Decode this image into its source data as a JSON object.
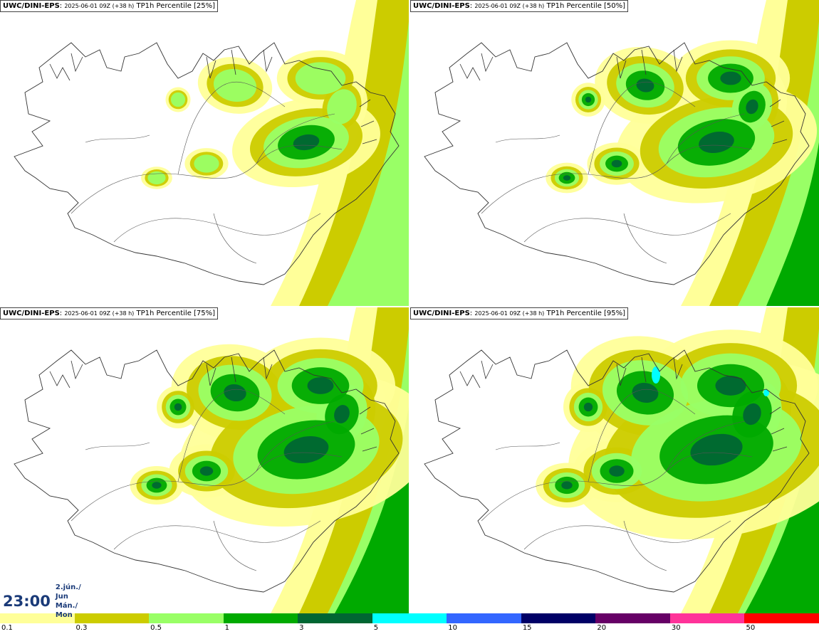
{
  "panels": [
    {
      "model": "UWC/DINI-EPS",
      "run": "2025-06-01 09Z (+38 h)",
      "field": "TP1h Percentile [25%]",
      "level": 0.25
    },
    {
      "model": "UWC/DINI-EPS",
      "run": "2025-06-01 09Z (+38 h)",
      "field": "TP1h Percentile [50%]",
      "level": 0.5
    },
    {
      "model": "UWC/DINI-EPS",
      "run": "2025-06-01 09Z (+38 h)",
      "field": "TP1h Percentile [75%]",
      "level": 0.75
    },
    {
      "model": "UWC/DINI-EPS",
      "run": "2025-06-01 09Z (+38 h)",
      "field": "TP1h Percentile [95%]",
      "level": 0.95
    }
  ],
  "valid_time": {
    "time": "23:00",
    "date_line1": "2.jún./ Jun",
    "date_line2": "Mán./ Mon"
  },
  "legend": {
    "colors": [
      "#ffff99",
      "#cccc00",
      "#99ff66",
      "#00aa00",
      "#006633",
      "#00ffff",
      "#3366ff",
      "#000066",
      "#660066",
      "#ff3399",
      "#ff0000"
    ],
    "labels": [
      "0.1",
      "0.3",
      "0.5",
      "1",
      "3",
      "5",
      "10",
      "15",
      "20",
      "30",
      "50"
    ]
  }
}
